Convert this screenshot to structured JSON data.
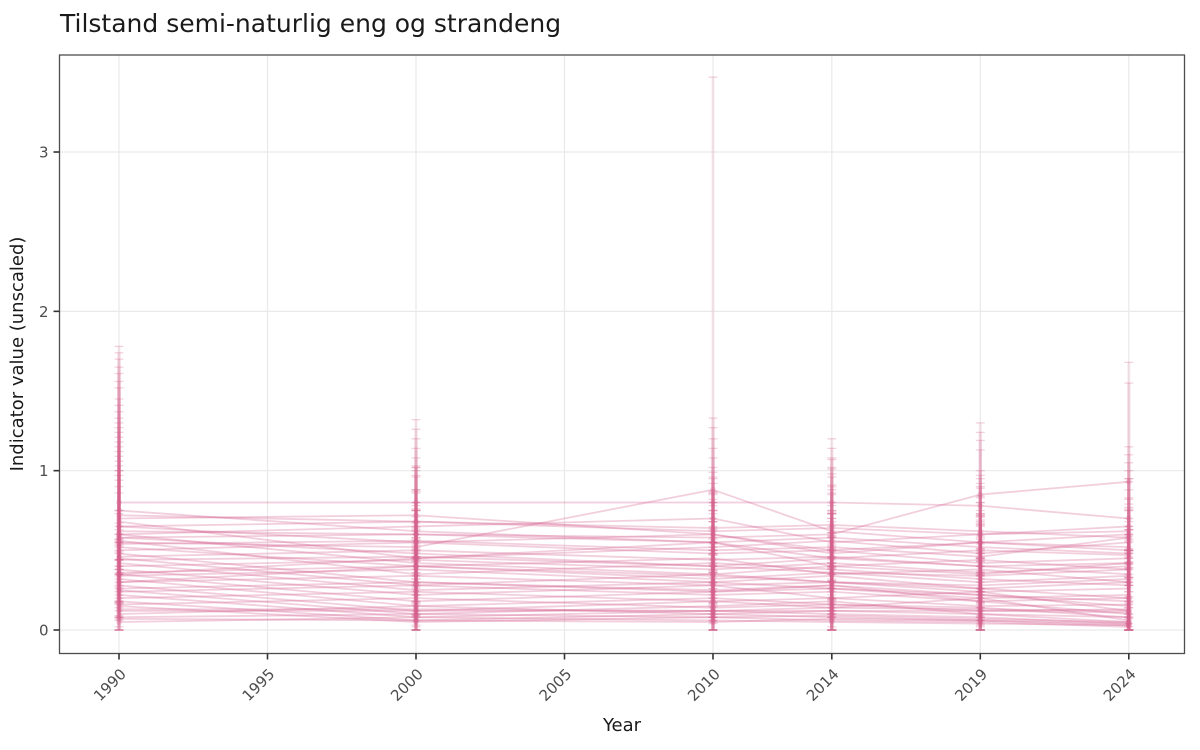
{
  "title": "Tilstand semi-naturlig eng og strandeng",
  "axes": {
    "x_label": "Year",
    "y_label": "Indicator value (unscaled)"
  },
  "style": {
    "line_color": "#d4608d",
    "grid_color": "#e9e9e9",
    "panel_border_color": "#4d4d4d",
    "tick_color": "#333333",
    "tick_label_color": "#4d4d4d",
    "title_color": "#1a1a1a",
    "background": "#ffffff"
  },
  "chart_data": {
    "type": "line",
    "title": "Tilstand semi-naturlig eng og strandeng",
    "xlabel": "Year",
    "ylabel": "Indicator value (unscaled)",
    "x": [
      1990,
      2000,
      2010,
      2014,
      2019,
      2024
    ],
    "x_axis_breaks": [
      1990,
      1995,
      2000,
      2005,
      2010,
      2014,
      2019,
      2024
    ],
    "y_ticks": [
      0,
      1,
      2,
      3
    ],
    "xlim": [
      1988,
      2025.9
    ],
    "ylim": [
      -0.15,
      3.61
    ],
    "grid": "major-only",
    "legend": "none",
    "error_bars": true,
    "n_series": 46,
    "series": [
      {
        "v": [
          0.8,
          0.8,
          0.8,
          0.8,
          0.78,
          0.7
        ],
        "lo": [
          0.75,
          0.75,
          0.75,
          0.75,
          0.73,
          0.65
        ],
        "hi": [
          0.86,
          0.86,
          0.86,
          0.86,
          0.84,
          0.76
        ]
      },
      {
        "v": [
          0.12,
          0.12,
          0.12,
          0.12,
          0.12,
          0.11
        ],
        "lo": [
          0.08,
          0.08,
          0.08,
          0.08,
          0.08,
          0.07
        ],
        "hi": [
          0.17,
          0.17,
          0.17,
          0.17,
          0.17,
          0.16
        ]
      },
      {
        "v": [
          0.13,
          0.13,
          0.12,
          0.14,
          0.13,
          0.12
        ],
        "lo": [
          0.09,
          0.09,
          0.08,
          0.1,
          0.09,
          0.08
        ],
        "hi": [
          0.18,
          0.18,
          0.17,
          0.19,
          0.18,
          0.17
        ]
      },
      {
        "v": [
          0.55,
          0.52,
          0.88,
          0.62,
          0.55,
          0.5
        ],
        "lo": [
          0.35,
          0.32,
          0.68,
          0.42,
          0.35,
          0.3
        ],
        "hi": [
          1.0,
          0.97,
          3.47,
          1.07,
          1.0,
          0.95
        ]
      },
      {
        "v": [
          0.62,
          0.6,
          0.58,
          0.6,
          0.85,
          0.93
        ],
        "lo": [
          0.48,
          0.46,
          0.44,
          0.46,
          0.71,
          0.79
        ],
        "hi": [
          0.9,
          0.88,
          0.86,
          0.88,
          1.13,
          1.15
        ]
      },
      {
        "v": [
          0.75,
          0.62,
          0.55,
          0.58,
          0.52,
          0.48
        ],
        "lo": [
          0.57,
          0.44,
          0.37,
          0.4,
          0.34,
          0.3
        ],
        "hi": [
          1.78,
          1.02,
          0.95,
          0.98,
          0.92,
          0.88
        ]
      },
      {
        "v": [
          0.7,
          0.72,
          0.6,
          0.5,
          0.55,
          0.52
        ],
        "lo": [
          0.6,
          0.62,
          0.5,
          0.4,
          0.45,
          0.42
        ],
        "hi": [
          1.7,
          1.32,
          0.85,
          0.75,
          0.8,
          0.77
        ]
      },
      {
        "v": [
          0.68,
          0.45,
          0.52,
          0.56,
          0.48,
          0.55
        ],
        "lo": [
          0.52,
          0.29,
          0.36,
          0.4,
          0.32,
          0.39
        ],
        "hi": [
          1.61,
          0.8,
          0.87,
          0.91,
          0.83,
          1.68
        ]
      },
      {
        "v": [
          0.65,
          0.68,
          0.62,
          0.64,
          0.6,
          0.62
        ],
        "lo": [
          0.53,
          0.56,
          0.5,
          0.52,
          0.48,
          0.5
        ],
        "hi": [
          1.56,
          1.26,
          0.92,
          1.14,
          0.9,
          1.1
        ]
      },
      {
        "v": [
          0.6,
          0.42,
          0.35,
          0.4,
          0.44,
          0.38
        ],
        "lo": [
          0.4,
          0.22,
          0.15,
          0.2,
          0.24,
          0.18
        ],
        "hi": [
          1.45,
          0.87,
          0.8,
          0.85,
          0.89,
          0.83
        ]
      },
      {
        "v": [
          0.58,
          0.6,
          0.55,
          0.45,
          0.5,
          0.47
        ],
        "lo": [
          0.44,
          0.46,
          0.41,
          0.31,
          0.36,
          0.33
        ],
        "hi": [
          1.37,
          0.88,
          1.33,
          0.73,
          1.3,
          0.75
        ]
      },
      {
        "v": [
          0.56,
          0.35,
          0.42,
          0.38,
          0.32,
          0.28
        ],
        "lo": [
          0.38,
          0.17,
          0.24,
          0.2,
          0.14,
          0.1
        ],
        "hi": [
          1.33,
          0.75,
          0.82,
          0.78,
          0.72,
          0.68
        ]
      },
      {
        "v": [
          0.54,
          0.56,
          0.5,
          0.52,
          0.46,
          0.58
        ],
        "lo": [
          0.44,
          0.46,
          0.4,
          0.42,
          0.36,
          0.48
        ],
        "hi": [
          1.3,
          1.2,
          0.75,
          1.2,
          0.71,
          1.55
        ]
      },
      {
        "v": [
          0.52,
          0.4,
          0.45,
          0.35,
          0.38,
          0.3
        ],
        "lo": [
          0.36,
          0.24,
          0.29,
          0.19,
          0.22,
          0.14
        ],
        "hi": [
          1.27,
          0.75,
          0.8,
          0.7,
          0.73,
          0.65
        ]
      },
      {
        "v": [
          0.5,
          0.55,
          0.48,
          0.5,
          0.42,
          0.45
        ],
        "lo": [
          0.38,
          0.43,
          0.36,
          0.38,
          0.3,
          0.33
        ],
        "hi": [
          1.24,
          1.14,
          0.78,
          1.08,
          0.72,
          0.75
        ]
      },
      {
        "v": [
          0.48,
          0.3,
          0.25,
          0.28,
          0.22,
          0.18
        ],
        "lo": [
          0.28,
          0.1,
          0.05,
          0.08,
          0.02,
          0.0
        ],
        "hi": [
          1.21,
          0.75,
          0.7,
          0.73,
          0.67,
          0.63
        ]
      },
      {
        "v": [
          0.46,
          0.5,
          0.44,
          0.46,
          0.4,
          0.42
        ],
        "lo": [
          0.32,
          0.36,
          0.3,
          0.32,
          0.26,
          0.28
        ],
        "hi": [
          1.18,
          0.78,
          1.14,
          0.74,
          1.24,
          0.7
        ]
      },
      {
        "v": [
          0.45,
          0.28,
          0.35,
          0.3,
          0.26,
          0.2
        ],
        "lo": [
          0.27,
          0.1,
          0.17,
          0.12,
          0.08,
          0.02
        ],
        "hi": [
          1.15,
          0.68,
          0.75,
          0.7,
          0.66,
          0.6
        ]
      },
      {
        "v": [
          0.44,
          0.46,
          0.4,
          0.36,
          0.34,
          0.38
        ],
        "lo": [
          0.34,
          0.36,
          0.3,
          0.26,
          0.24,
          0.28
        ],
        "hi": [
          1.12,
          0.71,
          1.02,
          0.61,
          0.59,
          0.63
        ]
      },
      {
        "v": [
          0.42,
          0.25,
          0.3,
          0.26,
          0.22,
          0.15
        ],
        "lo": [
          0.26,
          0.09,
          0.14,
          0.1,
          0.06,
          0.0
        ],
        "hi": [
          1.09,
          0.6,
          0.65,
          0.61,
          0.57,
          0.5
        ]
      },
      {
        "v": [
          0.4,
          0.44,
          0.38,
          0.42,
          0.36,
          0.4
        ],
        "lo": [
          0.3,
          0.32,
          0.26,
          0.3,
          0.24,
          0.28
        ],
        "hi": [
          1.06,
          1.02,
          0.68,
          1.02,
          0.66,
          0.95
        ]
      },
      {
        "v": [
          0.38,
          0.22,
          0.28,
          0.2,
          0.24,
          0.12
        ],
        "lo": [
          0.18,
          0.02,
          0.08,
          0.0,
          0.04,
          0.0
        ],
        "hi": [
          1.03,
          0.67,
          0.73,
          0.65,
          0.69,
          0.57
        ]
      },
      {
        "v": [
          0.36,
          0.4,
          0.34,
          0.3,
          0.28,
          0.32
        ],
        "lo": [
          0.22,
          0.26,
          0.2,
          0.16,
          0.14,
          0.18
        ],
        "hi": [
          1.0,
          0.96,
          0.62,
          0.58,
          1.19,
          0.6
        ]
      },
      {
        "v": [
          0.35,
          0.18,
          0.24,
          0.28,
          0.18,
          0.1
        ],
        "lo": [
          0.17,
          0.0,
          0.06,
          0.1,
          0.0,
          0.0
        ],
        "hi": [
          0.97,
          0.58,
          0.64,
          0.68,
          0.58,
          0.5
        ]
      },
      {
        "v": [
          0.34,
          0.38,
          0.3,
          0.34,
          0.26,
          0.3
        ],
        "lo": [
          0.24,
          0.28,
          0.2,
          0.24,
          0.16,
          0.2
        ],
        "hi": [
          0.94,
          0.63,
          0.96,
          0.59,
          0.51,
          0.55
        ]
      },
      {
        "v": [
          0.32,
          0.15,
          0.2,
          0.16,
          0.14,
          0.08
        ],
        "lo": [
          0.16,
          0.0,
          0.04,
          0.0,
          0.0,
          0.0
        ],
        "hi": [
          0.67,
          0.5,
          0.55,
          0.51,
          0.49,
          0.43
        ]
      },
      {
        "v": [
          0.3,
          0.34,
          0.28,
          0.3,
          0.24,
          0.26
        ],
        "lo": [
          0.18,
          0.22,
          0.16,
          0.18,
          0.12,
          0.14
        ],
        "hi": [
          0.6,
          0.64,
          0.58,
          0.96,
          0.54,
          0.56
        ]
      },
      {
        "v": [
          0.28,
          0.12,
          0.18,
          0.14,
          0.2,
          0.06
        ],
        "lo": [
          0.08,
          0.0,
          0.0,
          0.0,
          0.0,
          0.0
        ],
        "hi": [
          0.73,
          0.57,
          0.63,
          0.59,
          0.65,
          0.51
        ]
      },
      {
        "v": [
          0.26,
          0.3,
          0.24,
          0.26,
          0.2,
          0.22
        ],
        "lo": [
          0.12,
          0.16,
          0.1,
          0.12,
          0.06,
          0.08
        ],
        "hi": [
          0.54,
          0.58,
          0.52,
          0.54,
          0.48,
          0.5
        ]
      },
      {
        "v": [
          0.25,
          0.1,
          0.15,
          0.18,
          0.1,
          0.05
        ],
        "lo": [
          0.07,
          0.0,
          0.0,
          0.0,
          0.0,
          0.0
        ],
        "hi": [
          0.65,
          0.5,
          0.55,
          0.58,
          0.5,
          0.45
        ]
      },
      {
        "v": [
          0.24,
          0.28,
          0.22,
          0.24,
          0.18,
          0.2
        ],
        "lo": [
          0.14,
          0.18,
          0.12,
          0.14,
          0.08,
          0.1
        ],
        "hi": [
          0.49,
          0.53,
          0.47,
          0.49,
          0.43,
          0.45
        ]
      },
      {
        "v": [
          0.22,
          0.08,
          0.12,
          0.1,
          0.08,
          0.04
        ],
        "lo": [
          0.06,
          0.0,
          0.0,
          0.0,
          0.0,
          0.0
        ],
        "hi": [
          0.57,
          0.43,
          0.47,
          0.45,
          0.43,
          0.39
        ]
      },
      {
        "v": [
          0.2,
          0.24,
          0.18,
          0.2,
          0.15,
          0.16
        ],
        "lo": [
          0.08,
          0.12,
          0.06,
          0.08,
          0.03,
          0.04
        ],
        "hi": [
          0.5,
          0.54,
          0.48,
          0.5,
          0.45,
          0.46
        ]
      },
      {
        "v": [
          0.18,
          0.06,
          0.1,
          0.08,
          0.06,
          0.03
        ],
        "lo": [
          0.0,
          0.0,
          0.0,
          0.0,
          0.0,
          0.0
        ],
        "hi": [
          0.63,
          0.51,
          0.55,
          0.53,
          0.51,
          0.48
        ]
      },
      {
        "v": [
          0.16,
          0.2,
          0.14,
          0.16,
          0.12,
          0.13
        ],
        "lo": [
          0.02,
          0.06,
          0.0,
          0.02,
          0.0,
          0.0
        ],
        "hi": [
          0.44,
          0.48,
          0.42,
          0.44,
          0.4,
          0.41
        ]
      },
      {
        "v": [
          0.15,
          0.05,
          0.08,
          0.06,
          0.05,
          0.02
        ],
        "lo": [
          0.0,
          0.0,
          0.0,
          0.0,
          0.0,
          0.0
        ],
        "hi": [
          0.55,
          0.45,
          0.48,
          0.46,
          0.45,
          0.42
        ]
      },
      {
        "v": [
          0.65,
          0.55,
          0.6,
          0.48,
          0.55,
          0.6
        ],
        "lo": [
          0.55,
          0.45,
          0.5,
          0.38,
          0.45,
          0.5
        ],
        "hi": [
          1.52,
          0.8,
          1.2,
          0.73,
          0.8,
          1.0
        ]
      },
      {
        "v": [
          0.72,
          0.68,
          0.64,
          0.66,
          0.62,
          0.58
        ],
        "lo": [
          0.56,
          0.52,
          0.48,
          0.5,
          0.46,
          0.42
        ],
        "hi": [
          1.74,
          1.03,
          0.99,
          1.01,
          0.97,
          0.93
        ]
      },
      {
        "v": [
          0.05,
          0.08,
          0.06,
          0.05,
          0.04,
          0.03
        ],
        "lo": [
          0.0,
          0.0,
          0.0,
          0.0,
          0.0,
          0.0
        ],
        "hi": [
          0.35,
          0.38,
          0.36,
          0.35,
          0.34,
          0.33
        ]
      },
      {
        "v": [
          0.08,
          0.1,
          0.08,
          0.09,
          0.07,
          0.05
        ],
        "lo": [
          0.0,
          0.0,
          0.0,
          0.0,
          0.0,
          0.0
        ],
        "hi": [
          0.38,
          0.4,
          0.38,
          0.39,
          0.37,
          0.35
        ]
      },
      {
        "v": [
          0.58,
          0.48,
          0.4,
          0.45,
          0.4,
          0.35
        ],
        "lo": [
          0.44,
          0.34,
          0.26,
          0.31,
          0.26,
          0.21
        ],
        "hi": [
          1.41,
          0.76,
          0.68,
          0.73,
          0.68,
          0.63
        ]
      },
      {
        "v": [
          0.35,
          0.45,
          0.55,
          0.4,
          0.35,
          0.42
        ],
        "lo": [
          0.17,
          0.27,
          0.37,
          0.22,
          0.17,
          0.24
        ],
        "hi": [
          0.75,
          1.08,
          1.08,
          0.8,
          0.75,
          0.82
        ]
      },
      {
        "v": [
          0.3,
          0.4,
          0.32,
          0.36,
          0.3,
          0.34
        ],
        "lo": [
          0.2,
          0.3,
          0.22,
          0.26,
          0.2,
          0.24
        ],
        "hi": [
          0.55,
          0.65,
          0.57,
          0.61,
          0.55,
          0.59
        ]
      },
      {
        "v": [
          0.6,
          0.65,
          0.7,
          0.55,
          0.6,
          0.65
        ],
        "lo": [
          0.44,
          0.49,
          0.54,
          0.39,
          0.44,
          0.49
        ],
        "hi": [
          1.65,
          1.0,
          1.27,
          0.9,
          0.95,
          1.05
        ]
      },
      {
        "v": [
          0.1,
          0.15,
          0.1,
          0.12,
          0.1,
          0.08
        ],
        "lo": [
          0.0,
          0.03,
          0.0,
          0.0,
          0.0,
          0.0
        ],
        "hi": [
          0.4,
          0.45,
          0.4,
          0.42,
          0.4,
          0.38
        ]
      },
      {
        "v": [
          0.07,
          0.06,
          0.05,
          0.07,
          0.06,
          0.04
        ],
        "lo": [
          0.0,
          0.0,
          0.0,
          0.0,
          0.0,
          0.0
        ],
        "hi": [
          0.35,
          0.34,
          0.33,
          0.35,
          0.34,
          0.32
        ]
      }
    ]
  }
}
